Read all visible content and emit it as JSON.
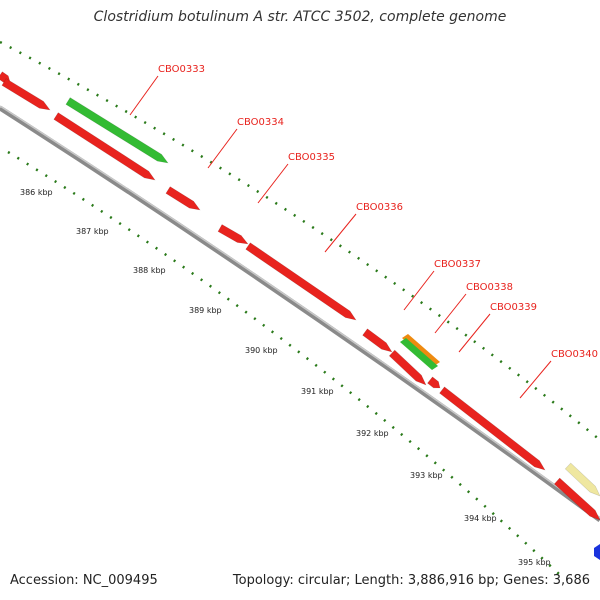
{
  "title": "Clostridium botulinum A str. ATCC 3502, complete genome",
  "footer": {
    "accession": "Accession: NC_009495",
    "summary": "Topology: circular; Length: 3,886,916 bp; Genes: 3,686"
  },
  "ticks": [
    "386 kbp",
    "387 kbp",
    "388 kbp",
    "389 kbp",
    "390 kbp",
    "391 kbp",
    "392 kbp",
    "393 kbp",
    "394 kbp",
    "395 kbp"
  ],
  "genes": [
    "CBO0333",
    "CBO0334",
    "CBO0335",
    "CBO0336",
    "CBO0337",
    "CBO0338",
    "CBO0339",
    "CBO0340"
  ],
  "colors": {
    "gene_red": "#e8231e",
    "gene_green": "#33bb33",
    "gene_orange": "#ee8a10",
    "gene_yellow": "#efe7a0",
    "gene_blue": "#1a33dd",
    "backbone": "#8a8a8a",
    "tick_green": "#2a7a1a"
  }
}
